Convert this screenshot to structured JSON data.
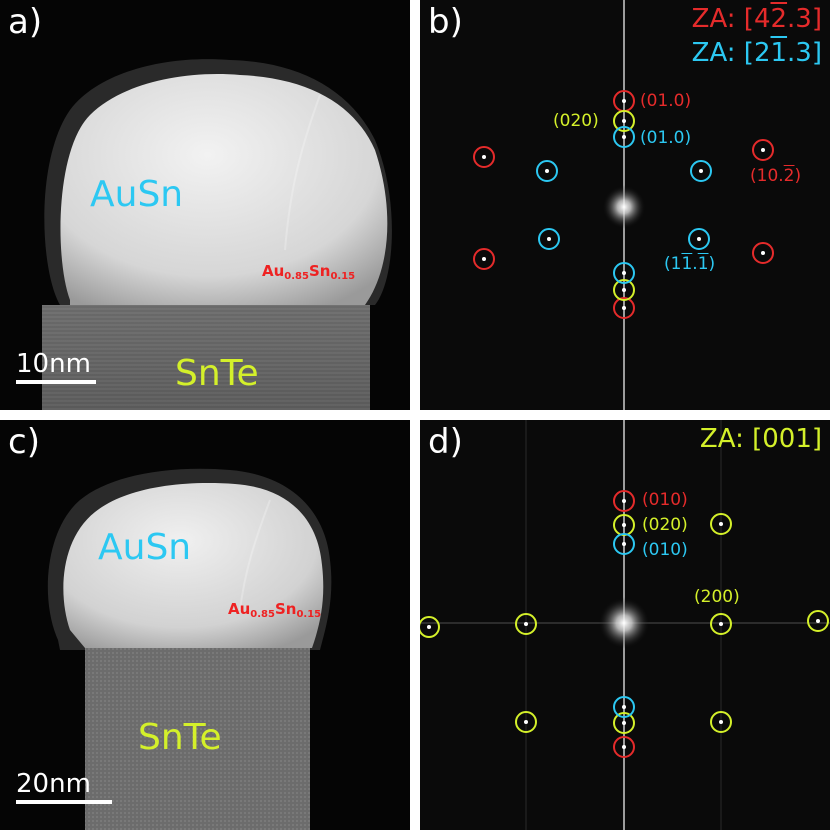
{
  "panel_a": {
    "label": "a)",
    "top_material": "AuSn",
    "bottom_material": "SnTe",
    "interface_el1": "Au",
    "interface_sub1": "0.85",
    "interface_el2": "Sn",
    "interface_sub2": "0.15",
    "scale_label": "10nm"
  },
  "panel_b": {
    "label": "b)",
    "za1_prefix": "ZA: [4",
    "za1_bar": "2",
    "za1_suffix": ".3]",
    "za2_prefix": "ZA: [2",
    "za2_bar": "1",
    "za2_suffix": ".3]",
    "red_index_top": "(01.0)",
    "lime_index": "(020)",
    "cyan_index_top": "(01.0)",
    "red_index_right_prefix": "(10.",
    "red_index_right_bar": "2",
    "red_index_right_suffix": ")",
    "cyan_index_right_prefix": "(1",
    "cyan_index_right_bar1": "1",
    "cyan_index_right_mid": ".",
    "cyan_index_right_bar2": "1",
    "cyan_index_right_suffix": ")",
    "colors": {
      "red": "#e52b2b",
      "cyan": "#2cc8f2",
      "lime": "#d4f02a"
    }
  },
  "panel_c": {
    "label": "c)",
    "top_material": "AuSn",
    "bottom_material": "SnTe",
    "interface_el1": "Au",
    "interface_sub1": "0.85",
    "interface_el2": "Sn",
    "interface_sub2": "0.15",
    "scale_label": "20nm"
  },
  "panel_d": {
    "label": "d)",
    "za": "ZA: [001]",
    "red_index": "(010)",
    "lime_index_020": "(020)",
    "cyan_index": "(010)",
    "lime_index_200": "(200)"
  }
}
